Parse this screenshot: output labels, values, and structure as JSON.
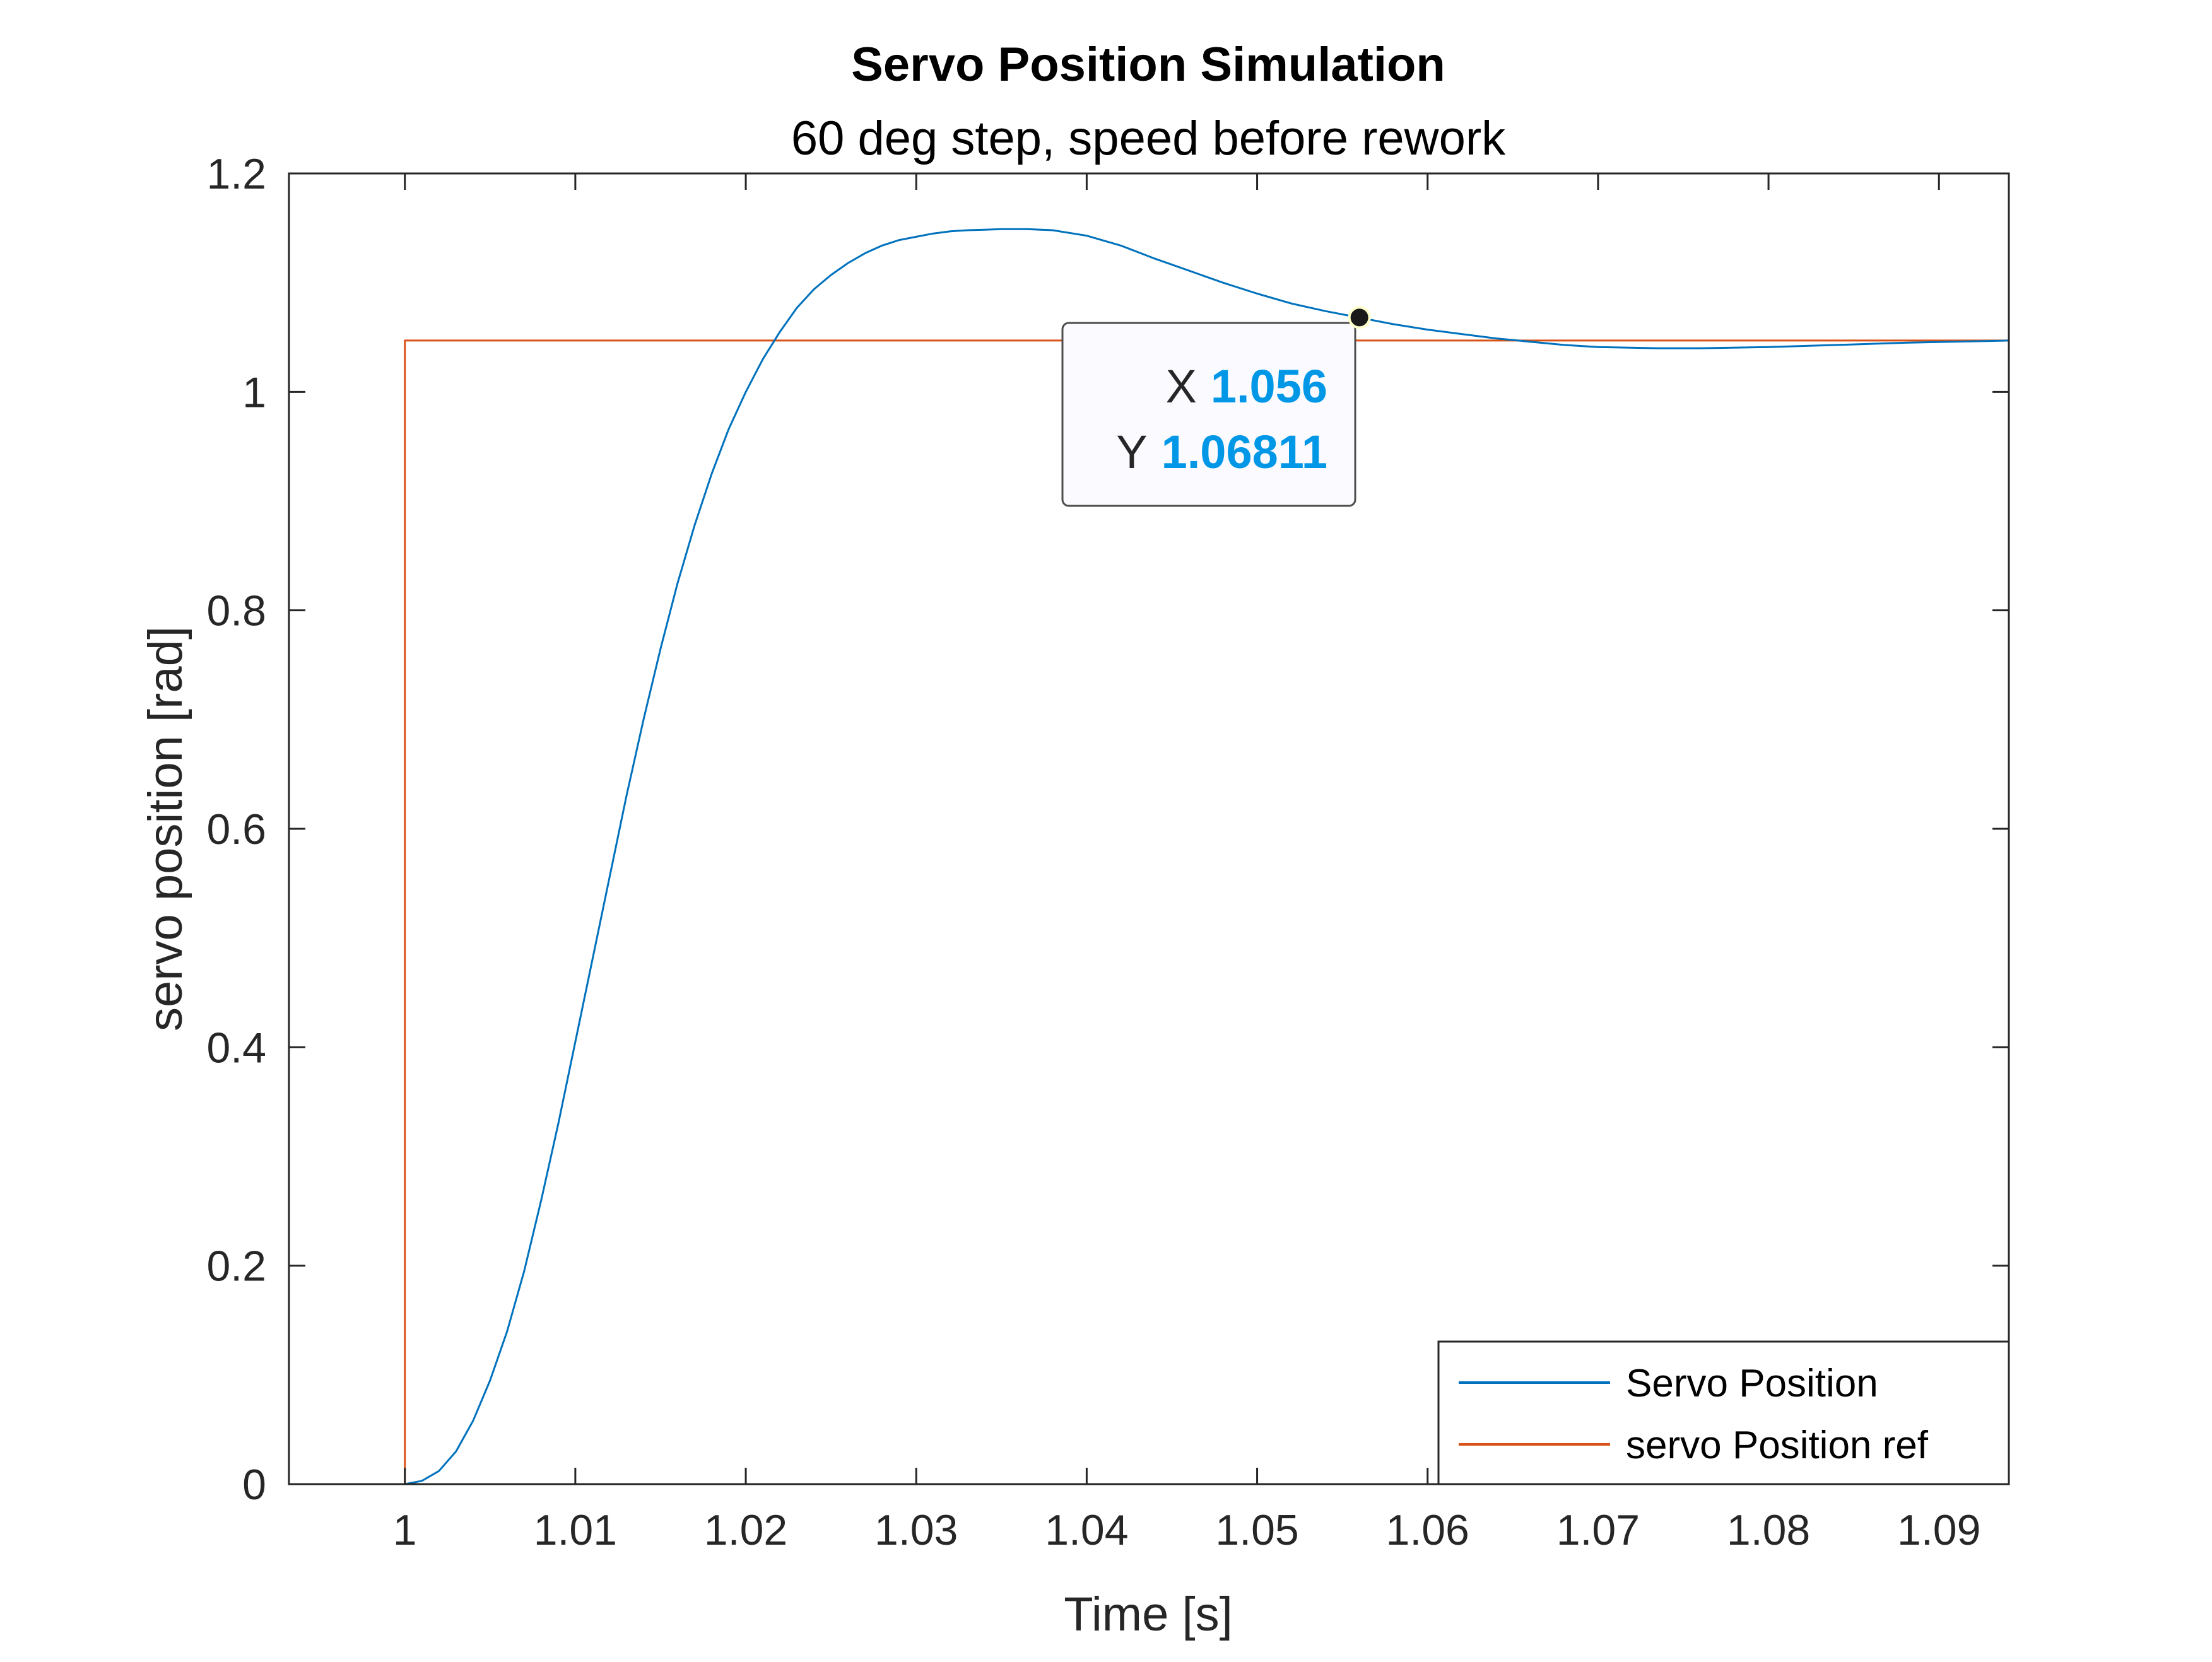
{
  "chart_data": {
    "type": "line",
    "title": "Servo Position Simulation",
    "subtitle": "60 deg step, speed before rework",
    "xlabel": "Time [s]",
    "ylabel": "servo position [rad]",
    "xlim": [
      0.9932,
      1.0941
    ],
    "ylim": [
      0,
      1.2
    ],
    "xticks": [
      1,
      1.01,
      1.02,
      1.03,
      1.04,
      1.05,
      1.06,
      1.07,
      1.08,
      1.09
    ],
    "xtick_labels": [
      "1",
      "1.01",
      "1.02",
      "1.03",
      "1.04",
      "1.05",
      "1.06",
      "1.07",
      "1.08",
      "1.09"
    ],
    "yticks": [
      0,
      0.2,
      0.4,
      0.6,
      0.8,
      1,
      1.2
    ],
    "ytick_labels": [
      "0",
      "0.2",
      "0.4",
      "0.6",
      "0.8",
      "1",
      "1.2"
    ],
    "grid": false,
    "legend_position": "bottom-right",
    "series": [
      {
        "name": "Servo Position",
        "color": "#0072bd",
        "x": [
          0.9932,
          1.0,
          1.001,
          1.002,
          1.003,
          1.004,
          1.005,
          1.006,
          1.007,
          1.008,
          1.009,
          1.01,
          1.011,
          1.012,
          1.013,
          1.014,
          1.015,
          1.016,
          1.017,
          1.018,
          1.019,
          1.02,
          1.021,
          1.022,
          1.023,
          1.024,
          1.025,
          1.026,
          1.027,
          1.028,
          1.029,
          1.03,
          1.031,
          1.032,
          1.033,
          1.034,
          1.035,
          1.0365,
          1.038,
          1.04,
          1.042,
          1.044,
          1.046,
          1.048,
          1.05,
          1.052,
          1.054,
          1.056,
          1.058,
          1.06,
          1.062,
          1.064,
          1.066,
          1.068,
          1.07,
          1.0735,
          1.076,
          1.08,
          1.084,
          1.088,
          1.0941
        ],
        "y": [
          0,
          0,
          0.003,
          0.012,
          0.03,
          0.058,
          0.095,
          0.14,
          0.195,
          0.26,
          0.33,
          0.405,
          0.48,
          0.555,
          0.63,
          0.7,
          0.765,
          0.825,
          0.878,
          0.925,
          0.966,
          1.0,
          1.03,
          1.055,
          1.077,
          1.094,
          1.107,
          1.118,
          1.127,
          1.134,
          1.139,
          1.142,
          1.145,
          1.147,
          1.148,
          1.1485,
          1.149,
          1.149,
          1.148,
          1.143,
          1.134,
          1.122,
          1.111,
          1.1,
          1.09,
          1.081,
          1.074,
          1.068,
          1.062,
          1.057,
          1.053,
          1.049,
          1.046,
          1.043,
          1.041,
          1.04,
          1.04,
          1.041,
          1.043,
          1.045,
          1.047
        ]
      },
      {
        "name": "servo Position ref",
        "color": "#d95319",
        "x": [
          0.9932,
          1.0,
          1.0,
          1.0941
        ],
        "y": [
          0,
          0,
          1.047,
          1.047
        ]
      }
    ],
    "datatip": {
      "x_key": "X",
      "x_value": "1.056",
      "y_key": "Y",
      "y_value": "1.06811",
      "point": [
        1.056,
        1.06811
      ]
    }
  }
}
